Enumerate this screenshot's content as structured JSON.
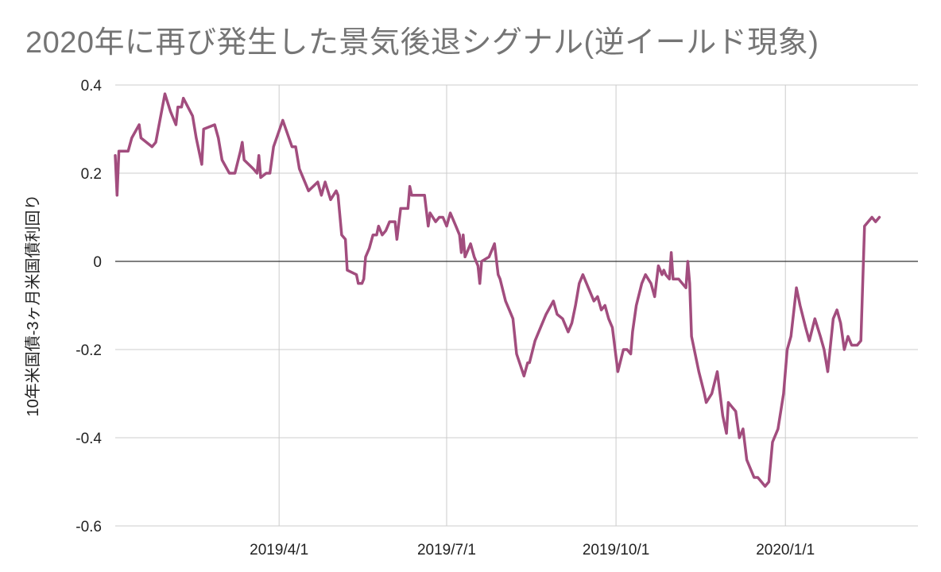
{
  "chart_data": {
    "type": "line",
    "title": "2020年に再び発生した景気後退シグナル(逆イールド現象)",
    "xlabel": "",
    "ylabel": "10年米国債-3ヶ月米国債利回り",
    "ylim": [
      -0.6,
      0.4
    ],
    "yticks": [
      "0.4",
      "0.2",
      "0",
      "-0.2",
      "-0.4",
      "-0.6"
    ],
    "ytick_values": [
      0.4,
      0.2,
      0,
      -0.2,
      -0.4,
      -0.6
    ],
    "xticks": [
      "2019/4/1",
      "2019/7/1",
      "2019/10/1",
      "2020/1/1"
    ],
    "xtick_values": [
      "2019-04-01",
      "2019-07-01",
      "2019-10-01",
      "2020-01-01"
    ],
    "xlim": [
      "2019-01-02",
      "2020-03-13"
    ],
    "grid": true,
    "zero_line": true,
    "line_color": "#A24D7E",
    "series": [
      {
        "values": [
          [
            "2019-01-02",
            0.24
          ],
          [
            "2019-01-03",
            0.15
          ],
          [
            "2019-01-04",
            0.25
          ],
          [
            "2019-01-09",
            0.25
          ],
          [
            "2019-01-11",
            0.28
          ],
          [
            "2019-01-15",
            0.31
          ],
          [
            "2019-01-16",
            0.28
          ],
          [
            "2019-01-22",
            0.26
          ],
          [
            "2019-01-24",
            0.27
          ],
          [
            "2019-01-29",
            0.38
          ],
          [
            "2019-02-01",
            0.34
          ],
          [
            "2019-02-04",
            0.31
          ],
          [
            "2019-02-05",
            0.35
          ],
          [
            "2019-02-07",
            0.35
          ],
          [
            "2019-02-08",
            0.37
          ],
          [
            "2019-02-13",
            0.33
          ],
          [
            "2019-02-15",
            0.28
          ],
          [
            "2019-02-18",
            0.22
          ],
          [
            "2019-02-19",
            0.3
          ],
          [
            "2019-02-25",
            0.31
          ],
          [
            "2019-02-27",
            0.28
          ],
          [
            "2019-03-01",
            0.23
          ],
          [
            "2019-03-05",
            0.2
          ],
          [
            "2019-03-08",
            0.2
          ],
          [
            "2019-03-11",
            0.25
          ],
          [
            "2019-03-12",
            0.27
          ],
          [
            "2019-03-13",
            0.23
          ],
          [
            "2019-03-18",
            0.21
          ],
          [
            "2019-03-20",
            0.2
          ],
          [
            "2019-03-21",
            0.24
          ],
          [
            "2019-03-22",
            0.19
          ],
          [
            "2019-03-25",
            0.2
          ],
          [
            "2019-03-27",
            0.2
          ],
          [
            "2019-03-29",
            0.26
          ],
          [
            "2019-04-03",
            0.32
          ],
          [
            "2019-04-08",
            0.26
          ],
          [
            "2019-04-10",
            0.26
          ],
          [
            "2019-04-12",
            0.21
          ],
          [
            "2019-04-17",
            0.16
          ],
          [
            "2019-04-22",
            0.18
          ],
          [
            "2019-04-24",
            0.15
          ],
          [
            "2019-04-26",
            0.18
          ],
          [
            "2019-04-29",
            0.14
          ],
          [
            "2019-05-02",
            0.16
          ],
          [
            "2019-05-03",
            0.15
          ],
          [
            "2019-05-05",
            0.06
          ],
          [
            "2019-05-07",
            0.05
          ],
          [
            "2019-05-08",
            -0.02
          ],
          [
            "2019-05-13",
            -0.03
          ],
          [
            "2019-05-14",
            -0.05
          ],
          [
            "2019-05-16",
            -0.05
          ],
          [
            "2019-05-17",
            -0.04
          ],
          [
            "2019-05-18",
            0.01
          ],
          [
            "2019-05-20",
            0.03
          ],
          [
            "2019-05-22",
            0.06
          ],
          [
            "2019-05-24",
            0.06
          ],
          [
            "2019-05-25",
            0.08
          ],
          [
            "2019-05-27",
            0.06
          ],
          [
            "2019-05-29",
            0.07
          ],
          [
            "2019-05-31",
            0.09
          ],
          [
            "2019-06-03",
            0.09
          ],
          [
            "2019-06-04",
            0.05
          ],
          [
            "2019-06-06",
            0.12
          ],
          [
            "2019-06-10",
            0.12
          ],
          [
            "2019-06-11",
            0.17
          ],
          [
            "2019-06-12",
            0.15
          ],
          [
            "2019-06-19",
            0.15
          ],
          [
            "2019-06-21",
            0.08
          ],
          [
            "2019-06-22",
            0.11
          ],
          [
            "2019-06-25",
            0.09
          ],
          [
            "2019-06-27",
            0.1
          ],
          [
            "2019-06-29",
            0.1
          ],
          [
            "2019-07-01",
            0.08
          ],
          [
            "2019-07-03",
            0.11
          ],
          [
            "2019-07-06",
            0.08
          ],
          [
            "2019-07-08",
            0.06
          ],
          [
            "2019-07-09",
            0.02
          ],
          [
            "2019-07-10",
            0.06
          ],
          [
            "2019-07-11",
            0.01
          ],
          [
            "2019-07-14",
            0.04
          ],
          [
            "2019-07-16",
            0.01
          ],
          [
            "2019-07-18",
            -0.01
          ],
          [
            "2019-07-19",
            -0.05
          ],
          [
            "2019-07-20",
            0.0
          ],
          [
            "2019-07-24",
            0.01
          ],
          [
            "2019-07-26",
            0.03
          ],
          [
            "2019-07-27",
            0.04
          ],
          [
            "2019-07-29",
            -0.03
          ],
          [
            "2019-07-30",
            -0.04
          ],
          [
            "2019-08-02",
            -0.09
          ],
          [
            "2019-08-05",
            -0.12
          ],
          [
            "2019-08-06",
            -0.13
          ],
          [
            "2019-08-08",
            -0.21
          ],
          [
            "2019-08-12",
            -0.26
          ],
          [
            "2019-08-14",
            -0.23
          ],
          [
            "2019-08-15",
            -0.23
          ],
          [
            "2019-08-18",
            -0.18
          ],
          [
            "2019-08-21",
            -0.15
          ],
          [
            "2019-08-24",
            -0.12
          ],
          [
            "2019-08-28",
            -0.09
          ],
          [
            "2019-08-30",
            -0.12
          ],
          [
            "2019-09-02",
            -0.13
          ],
          [
            "2019-09-05",
            -0.16
          ],
          [
            "2019-09-07",
            -0.14
          ],
          [
            "2019-09-09",
            -0.1
          ],
          [
            "2019-09-11",
            -0.05
          ],
          [
            "2019-09-13",
            -0.03
          ],
          [
            "2019-09-16",
            -0.06
          ],
          [
            "2019-09-19",
            -0.09
          ],
          [
            "2019-09-21",
            -0.08
          ],
          [
            "2019-09-23",
            -0.11
          ],
          [
            "2019-09-25",
            -0.1
          ],
          [
            "2019-09-27",
            -0.13
          ],
          [
            "2019-09-29",
            -0.15
          ],
          [
            "2019-10-02",
            -0.25
          ],
          [
            "2019-10-05",
            -0.2
          ],
          [
            "2019-10-07",
            -0.2
          ],
          [
            "2019-10-09",
            -0.21
          ],
          [
            "2019-10-10",
            -0.16
          ],
          [
            "2019-10-12",
            -0.1
          ],
          [
            "2019-10-15",
            -0.05
          ],
          [
            "2019-10-17",
            -0.03
          ],
          [
            "2019-10-20",
            -0.05
          ],
          [
            "2019-10-22",
            -0.08
          ],
          [
            "2019-10-24",
            -0.01
          ],
          [
            "2019-10-26",
            -0.03
          ],
          [
            "2019-10-27",
            -0.02
          ],
          [
            "2019-10-28",
            -0.03
          ],
          [
            "2019-10-30",
            -0.04
          ],
          [
            "2019-10-31",
            0.02
          ],
          [
            "2019-11-01",
            -0.04
          ],
          [
            "2019-11-04",
            -0.04
          ],
          [
            "2019-11-06",
            -0.05
          ],
          [
            "2019-11-08",
            -0.06
          ],
          [
            "2019-11-09",
            0.0
          ],
          [
            "2019-11-10",
            -0.05
          ],
          [
            "2019-11-11",
            -0.17
          ],
          [
            "2019-11-15",
            -0.25
          ],
          [
            "2019-11-18",
            -0.3
          ],
          [
            "2019-11-19",
            -0.32
          ],
          [
            "2019-11-22",
            -0.3
          ],
          [
            "2019-11-25",
            -0.25
          ],
          [
            "2019-11-28",
            -0.35
          ],
          [
            "2019-11-30",
            -0.39
          ],
          [
            "2019-12-01",
            -0.32
          ],
          [
            "2019-12-03",
            -0.33
          ],
          [
            "2019-12-05",
            -0.34
          ],
          [
            "2019-12-07",
            -0.4
          ],
          [
            "2019-12-09",
            -0.38
          ],
          [
            "2019-12-11",
            -0.45
          ],
          [
            "2019-12-13",
            -0.47
          ],
          [
            "2019-12-15",
            -0.49
          ],
          [
            "2019-12-17",
            -0.49
          ],
          [
            "2019-12-21",
            -0.51
          ],
          [
            "2019-12-23",
            -0.5
          ],
          [
            "2019-12-25",
            -0.41
          ],
          [
            "2019-12-28",
            -0.38
          ],
          [
            "2019-12-31",
            -0.3
          ],
          [
            "2020-01-02",
            -0.2
          ],
          [
            "2020-01-04",
            -0.17
          ],
          [
            "2020-01-07",
            -0.06
          ],
          [
            "2020-01-09",
            -0.1
          ],
          [
            "2020-01-12",
            -0.15
          ],
          [
            "2020-01-14",
            -0.18
          ],
          [
            "2020-01-17",
            -0.13
          ],
          [
            "2020-01-20",
            -0.17
          ],
          [
            "2020-01-22",
            -0.2
          ],
          [
            "2020-01-24",
            -0.25
          ],
          [
            "2020-01-27",
            -0.13
          ],
          [
            "2020-01-29",
            -0.11
          ],
          [
            "2020-01-31",
            -0.14
          ],
          [
            "2020-02-02",
            -0.2
          ],
          [
            "2020-02-04",
            -0.17
          ],
          [
            "2020-02-06",
            -0.19
          ],
          [
            "2020-02-09",
            -0.19
          ],
          [
            "2020-02-11",
            -0.18
          ],
          [
            "2020-02-13",
            0.08
          ],
          [
            "2020-02-17",
            0.1
          ],
          [
            "2020-02-19",
            0.09
          ],
          [
            "2020-02-21",
            0.1
          ]
        ]
      }
    ]
  }
}
